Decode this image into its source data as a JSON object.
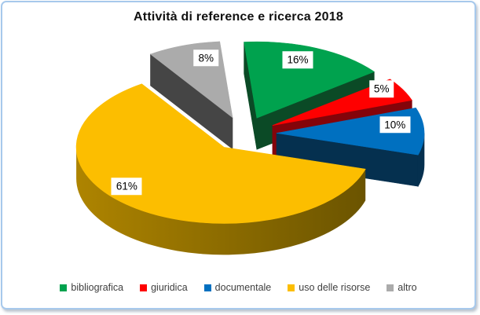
{
  "title": "Attività di reference e ricerca 2018",
  "window": {
    "background": "#ffffff",
    "border_color": "#a7c9ec"
  },
  "chart_data": {
    "type": "pie",
    "style": "3d-exploded",
    "title": "Attività di reference e ricerca 2018",
    "unit": "percent",
    "legend_position": "bottom",
    "start_angle_deg": -5,
    "clockwise": true,
    "slices": [
      {
        "label": "bibliografica",
        "value": 16,
        "display": "16%",
        "color": "#00A24E",
        "side_color": "#0B4A26"
      },
      {
        "label": "giuridica",
        "value": 5,
        "display": "5%",
        "color": "#FE0000",
        "side_color": "#84040A"
      },
      {
        "label": "documentale",
        "value": 10,
        "display": "10%",
        "color": "#0070C0",
        "side_color": "#05304F"
      },
      {
        "label": "uso delle risorse",
        "value": 61,
        "display": "61%",
        "color": "#FCBE00",
        "side_color": "#8A6A00",
        "side_gradient": [
          "#AE8400",
          "#6B5400"
        ]
      },
      {
        "label": "altro",
        "value": 8,
        "display": "8%",
        "color": "#ABABAB",
        "side_color": "#454545"
      }
    ]
  }
}
